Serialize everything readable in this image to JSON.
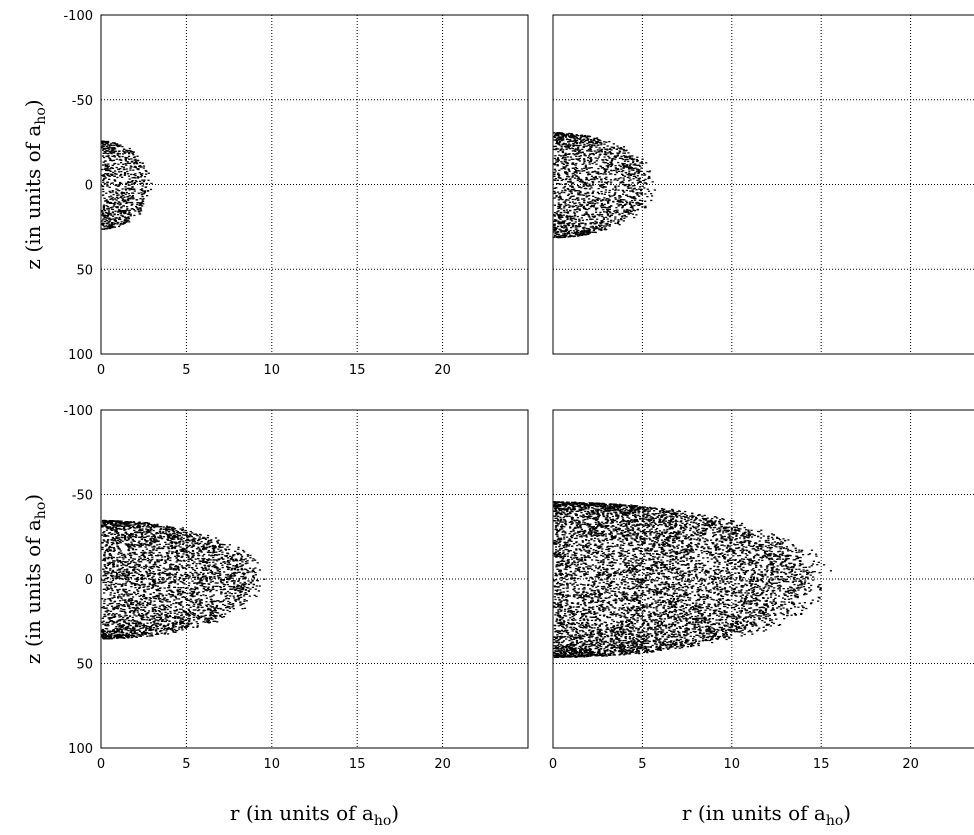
{
  "chart_data": [
    {
      "type": "scatter",
      "panel": "top-left",
      "xlim": [
        0,
        25
      ],
      "ylim": [
        -100,
        100
      ],
      "y_inverted": true,
      "xticks": [
        "0",
        "5",
        "10",
        "15",
        "20"
      ],
      "yticks": [
        "-100",
        "-50",
        "0",
        "50",
        "100"
      ],
      "grid": true,
      "cloud": {
        "r_max": 3.0,
        "z_half_width": 26
      },
      "ylabel": "z (in units of a",
      "ylabel_sub": "ho",
      "ylabel_end": ")"
    },
    {
      "type": "scatter",
      "panel": "top-right",
      "xlim": [
        0,
        25
      ],
      "ylim": [
        -100,
        100
      ],
      "y_inverted": true,
      "xticks": [],
      "yticks": [],
      "grid": true,
      "cloud": {
        "r_max": 5.8,
        "z_half_width": 31
      }
    },
    {
      "type": "scatter",
      "panel": "bottom-left",
      "xlim": [
        0,
        25
      ],
      "ylim": [
        -100,
        100
      ],
      "y_inverted": true,
      "xticks": [
        "0",
        "5",
        "10",
        "15",
        "20"
      ],
      "yticks": [
        "-100",
        "-50",
        "0",
        "50",
        "100"
      ],
      "grid": true,
      "cloud": {
        "r_max": 9.8,
        "z_half_width": 35
      },
      "xlabel": "r (in units of a",
      "xlabel_sub": "ho",
      "xlabel_end": ")",
      "ylabel": "z (in units of a",
      "ylabel_sub": "ho",
      "ylabel_end": ")"
    },
    {
      "type": "scatter",
      "panel": "bottom-right",
      "xlim": [
        0,
        25
      ],
      "ylim": [
        -100,
        100
      ],
      "y_inverted": true,
      "xticks": [
        "0",
        "5",
        "10",
        "15",
        "20"
      ],
      "yticks": [],
      "grid": true,
      "cloud": {
        "r_max": 15.8,
        "z_half_width": 46
      },
      "xlabel": "r (in units of a",
      "xlabel_sub": "ho",
      "xlabel_end": ")"
    }
  ]
}
